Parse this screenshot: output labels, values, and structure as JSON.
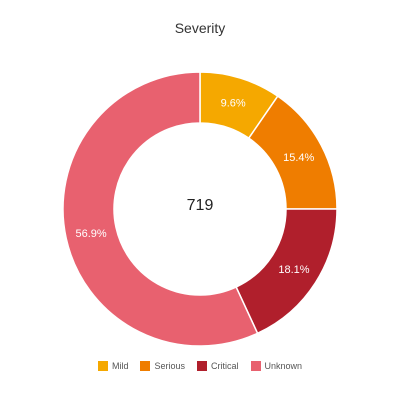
{
  "chart_data": {
    "type": "pie",
    "title": "Severity",
    "center_label": "719",
    "legend_position": "bottom",
    "slices": [
      {
        "name": "Mild",
        "value": 9.6,
        "label": "9.6%",
        "color": "#f5a800"
      },
      {
        "name": "Serious",
        "value": 15.4,
        "label": "15.4%",
        "color": "#ef7d00"
      },
      {
        "name": "Critical",
        "value": 18.1,
        "label": "18.1%",
        "color": "#b01f2c"
      },
      {
        "name": "Unknown",
        "value": 56.9,
        "label": "56.9%",
        "color": "#e8616f"
      }
    ]
  }
}
